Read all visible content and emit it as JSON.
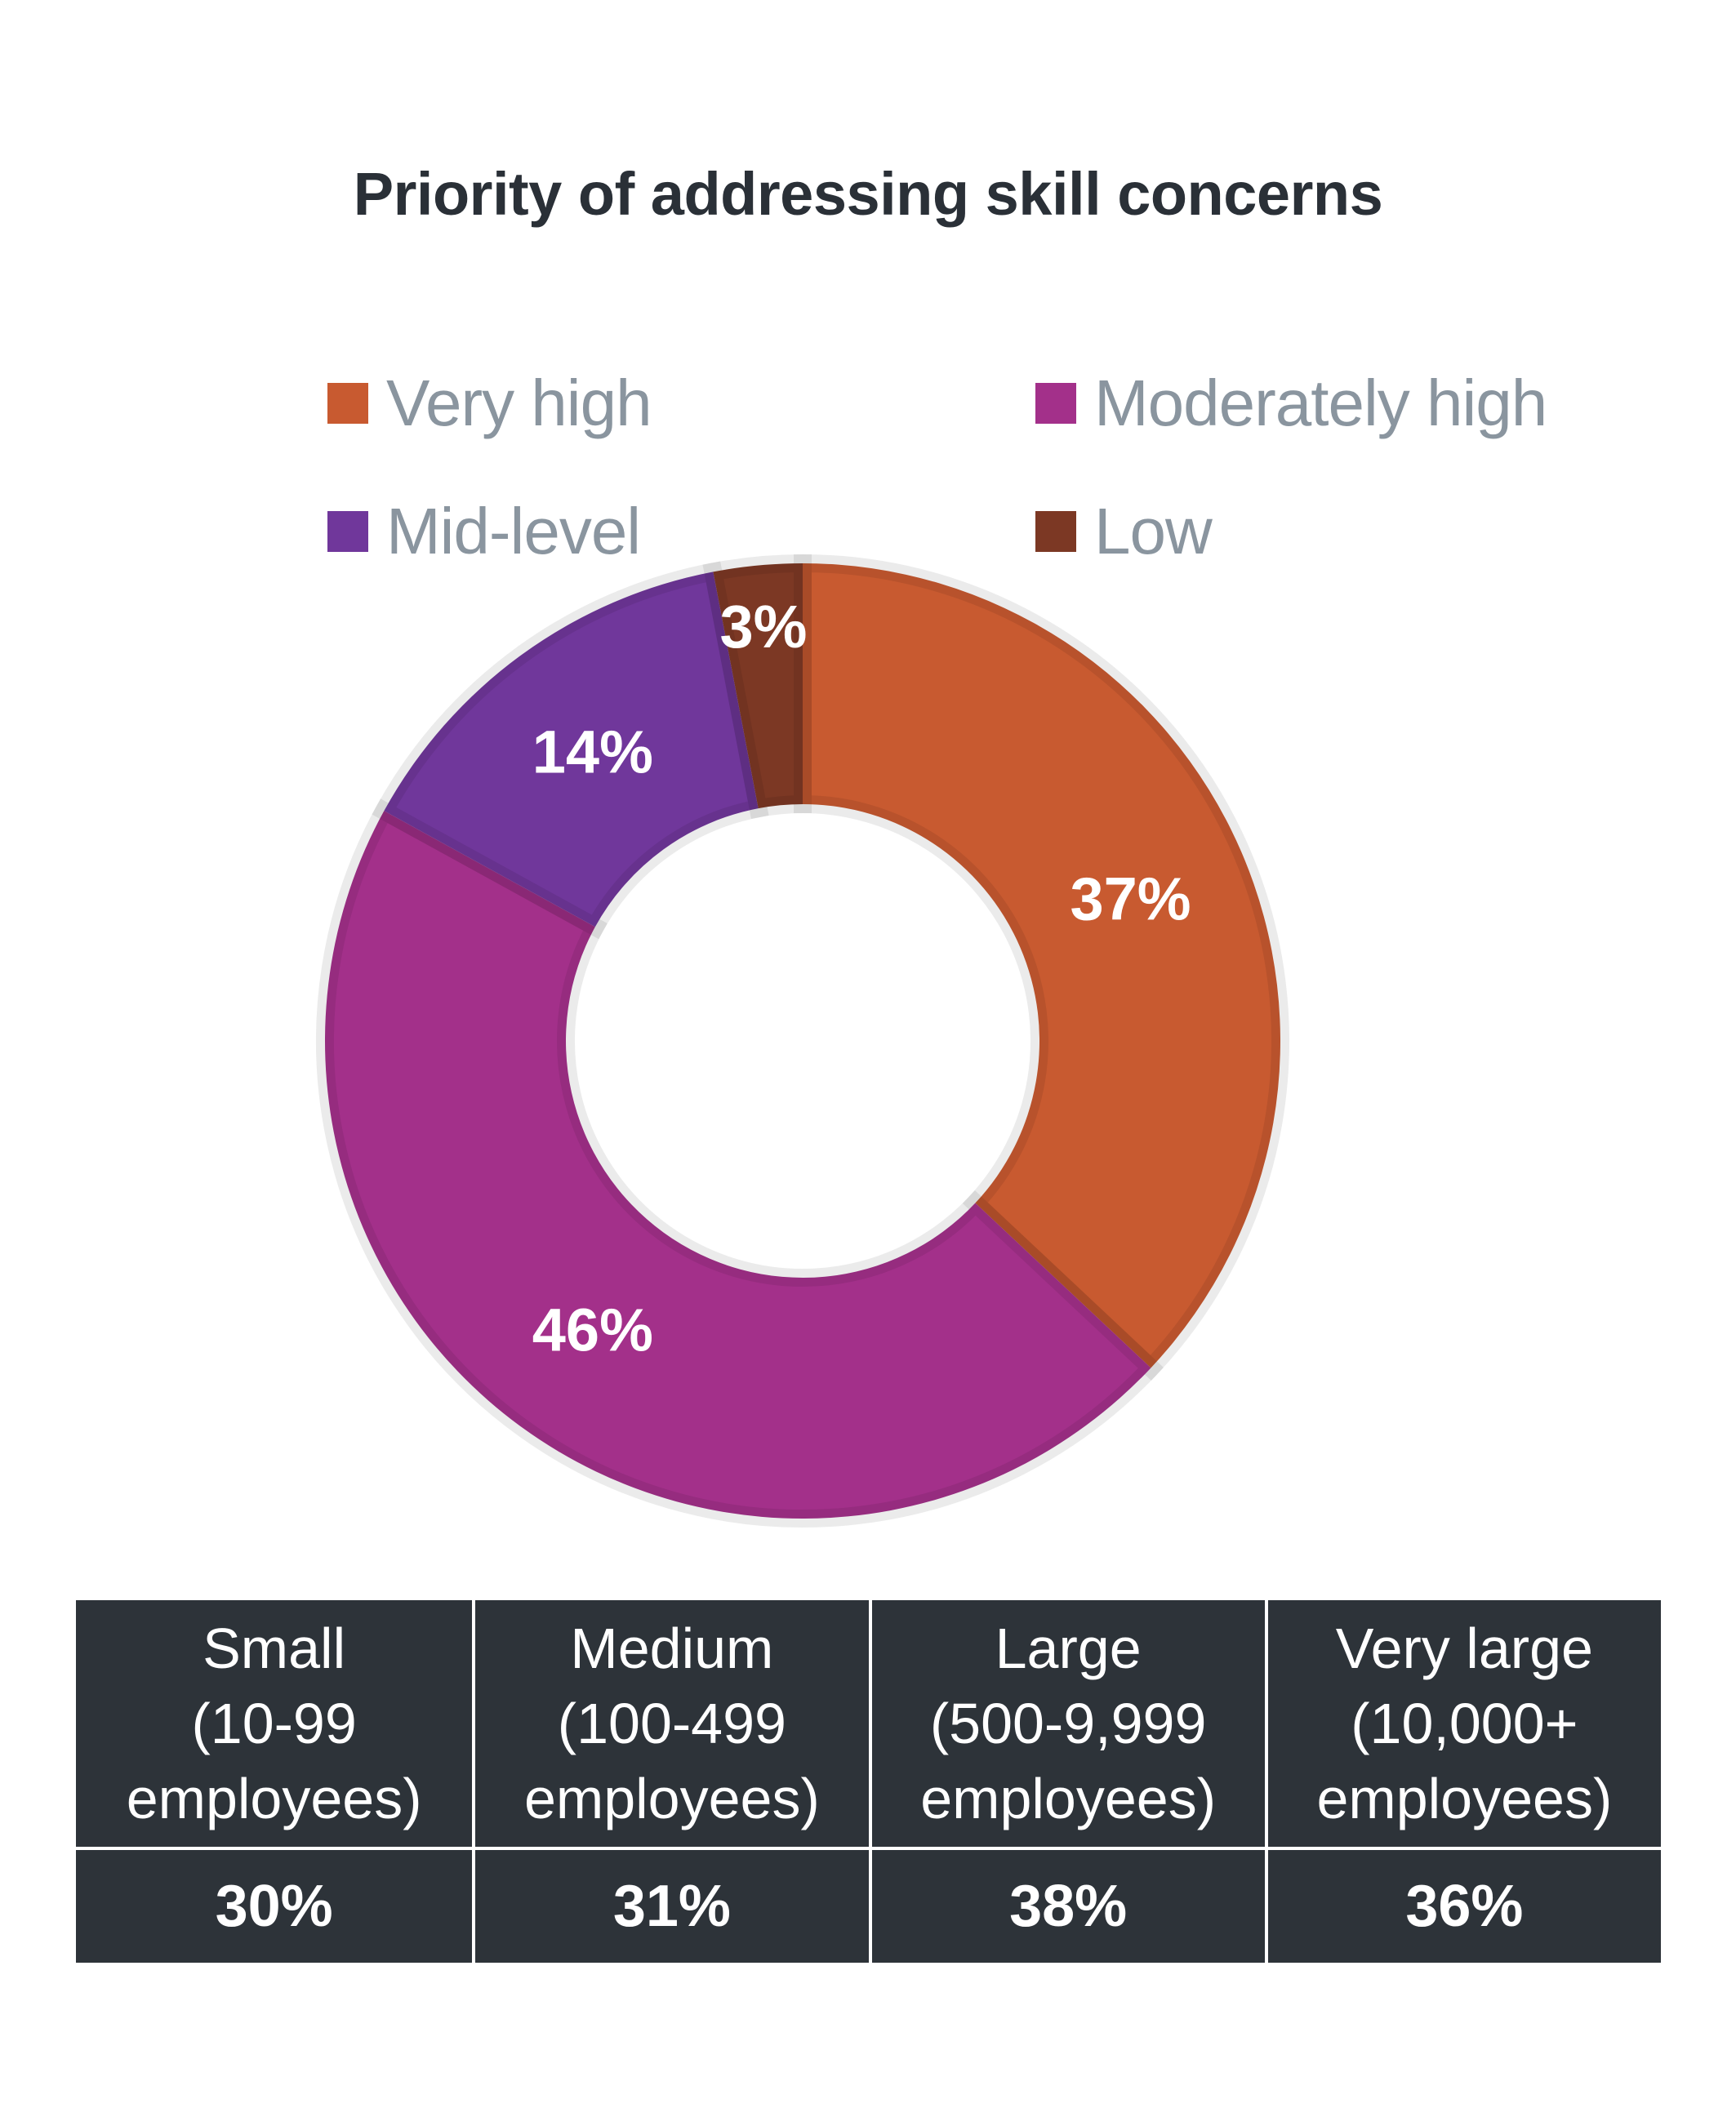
{
  "title": "Priority of addressing skill concerns",
  "legend": [
    {
      "label": "Very high",
      "color": "#c85a30"
    },
    {
      "label": "Moderately high",
      "color": "#a3308a"
    },
    {
      "label": "Mid-level",
      "color": "#70379b"
    },
    {
      "label": "Low",
      "color": "#7c3824"
    }
  ],
  "chart_data": {
    "type": "pie",
    "variant": "donut",
    "title": "Priority of addressing skill concerns",
    "categories": [
      "Very high",
      "Moderately high",
      "Mid-level",
      "Low"
    ],
    "values": [
      37,
      46,
      14,
      3
    ],
    "labels": [
      "37%",
      "46%",
      "14%",
      "3%"
    ],
    "colors": [
      "#c85a30",
      "#a3308a",
      "#70379b",
      "#7c3824"
    ],
    "legend_position": "top"
  },
  "table": {
    "headers": [
      [
        "Small",
        "(10-99",
        "employees)"
      ],
      [
        "Medium",
        "(100-499",
        "employees)"
      ],
      [
        "Large",
        "(500-9,999",
        "employees)"
      ],
      [
        "Very large",
        "(10,000+",
        "employees)"
      ]
    ],
    "values": [
      "30%",
      "31%",
      "38%",
      "36%"
    ]
  }
}
